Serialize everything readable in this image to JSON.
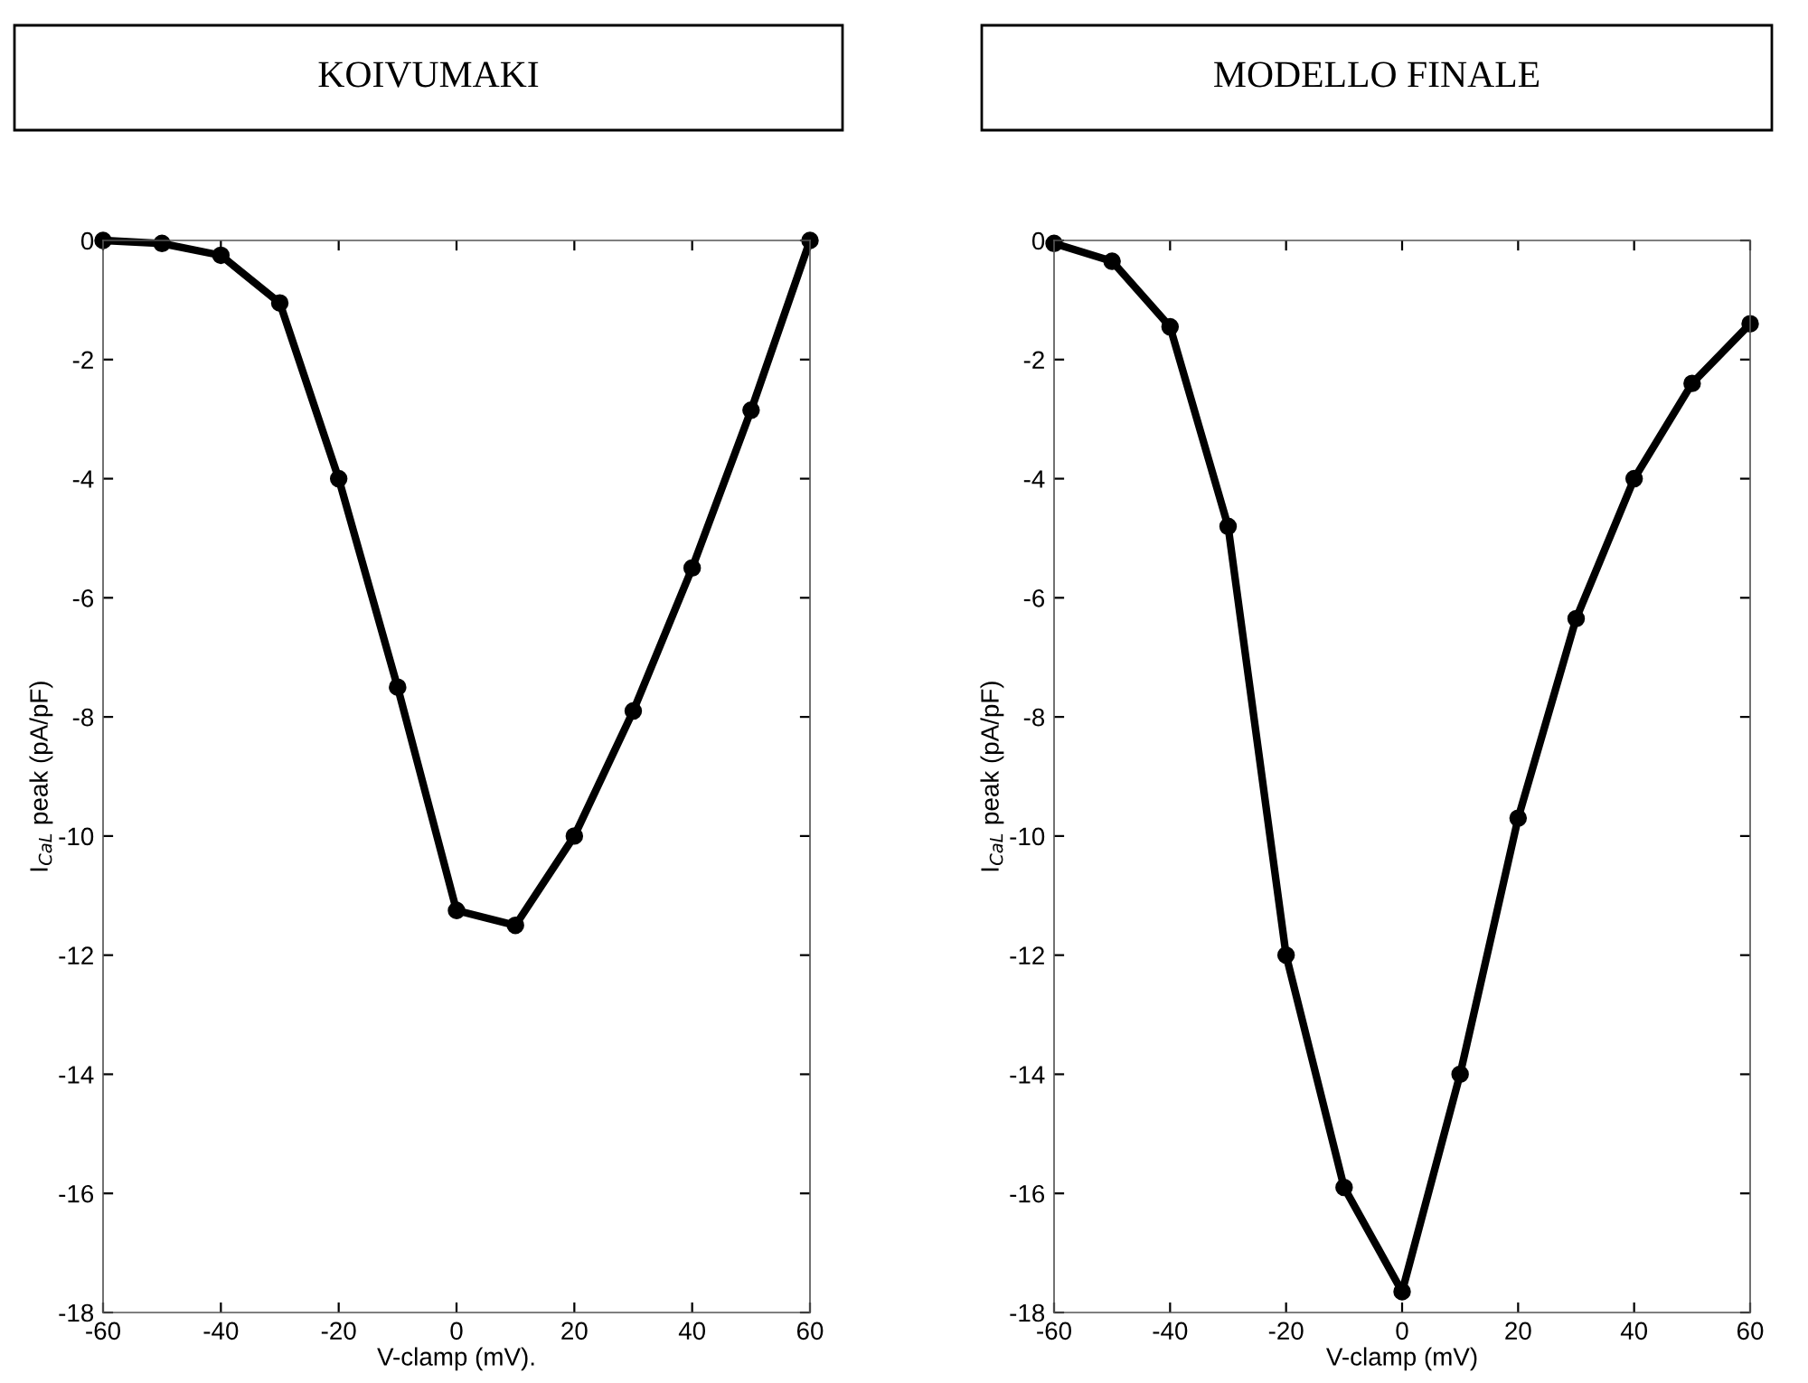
{
  "chart_data": [
    {
      "type": "line",
      "title": "KOIVUMAKI",
      "xlabel": "V-clamp (mV).",
      "ylabel": "I$_{CaL}$ peak (pA/pF)",
      "x": [
        -60,
        -50,
        -40,
        -30,
        -20,
        -10,
        0,
        10,
        20,
        30,
        40,
        50,
        60
      ],
      "series": [
        {
          "color": "#000000",
          "values": [
            0,
            -0.05,
            -0.25,
            -1.05,
            -4.0,
            -7.5,
            -11.25,
            -11.5,
            -10.0,
            -7.9,
            -5.5,
            -2.85,
            0
          ]
        }
      ],
      "marker": "circle",
      "line_style": "solid",
      "grid": false,
      "legend": false,
      "xlim": [
        -60,
        60
      ],
      "xticks": [
        -60,
        -40,
        -20,
        0,
        20,
        40,
        60
      ],
      "ylim": [
        -18,
        0
      ],
      "yticks": [
        -18,
        -16,
        -14,
        -12,
        -10,
        -8,
        -6,
        -4,
        -2,
        0
      ]
    },
    {
      "type": "line",
      "title": "MODELLO FINALE",
      "xlabel": "V-clamp (mV)",
      "ylabel": "I$_{CaL}$ peak (pA/pF)",
      "x": [
        -60,
        -50,
        -40,
        -30,
        -20,
        -10,
        0,
        10,
        20,
        30,
        40,
        50,
        60
      ],
      "series": [
        {
          "color": "#000000",
          "values": [
            -0.05,
            -0.35,
            -1.45,
            -4.8,
            -12.0,
            -15.9,
            -17.65,
            -14.0,
            -9.7,
            -6.35,
            -4.0,
            -2.4,
            -1.4
          ]
        }
      ],
      "marker": "circle",
      "line_style": "solid",
      "grid": false,
      "legend": false,
      "xlim": [
        -60,
        60
      ],
      "xticks": [
        -60,
        -40,
        -20,
        0,
        20,
        40,
        60
      ],
      "ylim": [
        -18,
        0
      ],
      "yticks": [
        -18,
        -16,
        -14,
        -12,
        -10,
        -8,
        -6,
        -4,
        -2,
        0
      ]
    }
  ]
}
